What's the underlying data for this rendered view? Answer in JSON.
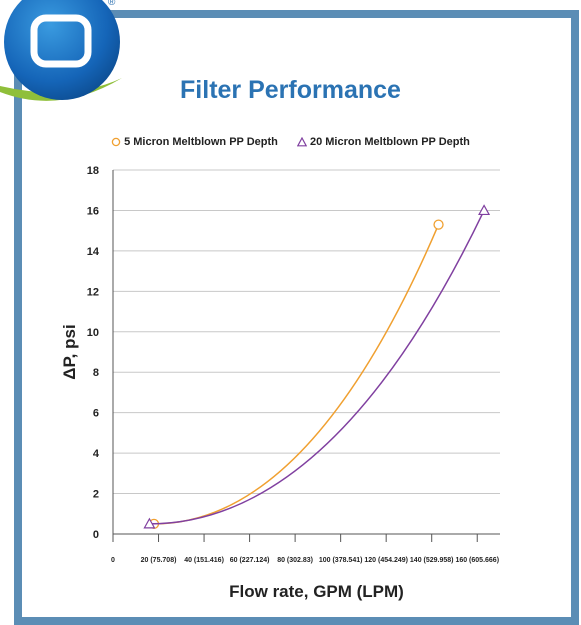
{
  "chart_data": {
    "type": "line",
    "title": "Filter Performance",
    "xlabel": "Flow rate, GPM (LPM)",
    "ylabel": "ΔP, psi",
    "xlim": [
      0,
      170
    ],
    "ylim": [
      0,
      18
    ],
    "x_ticks": [
      {
        "value": 0,
        "label": "0"
      },
      {
        "value": 20,
        "label": "20 (75.708)"
      },
      {
        "value": 40,
        "label": "40 (151.416)"
      },
      {
        "value": 60,
        "label": "60 (227.124)"
      },
      {
        "value": 80,
        "label": "80 (302.83)"
      },
      {
        "value": 100,
        "label": "100 (378.541)"
      },
      {
        "value": 120,
        "label": "120 (454.249)"
      },
      {
        "value": 140,
        "label": "140 (529.958)"
      },
      {
        "value": 160,
        "label": "160 (605.666)"
      }
    ],
    "y_ticks": [
      0,
      2,
      4,
      6,
      8,
      10,
      12,
      14,
      16,
      18
    ],
    "grid": "horizontal",
    "legend_position": "top",
    "series": [
      {
        "name": "5 Micron Meltblown PP Depth",
        "color": "#f0a030",
        "marker": "circle",
        "points": [
          [
            18,
            0.5
          ],
          [
            143,
            15.3
          ]
        ]
      },
      {
        "name": "20 Micron Meltblown PP Depth",
        "color": "#8040a0",
        "marker": "triangle",
        "points": [
          [
            16,
            0.5
          ],
          [
            163,
            16
          ]
        ]
      }
    ]
  }
}
